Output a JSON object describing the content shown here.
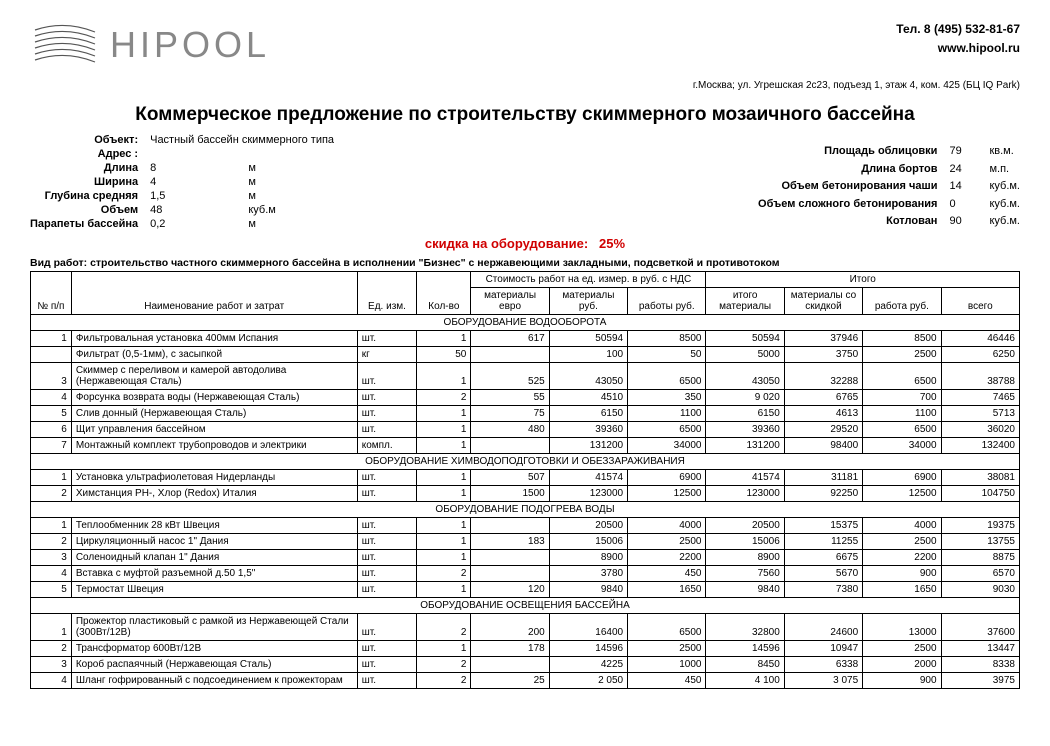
{
  "header": {
    "brand": "HIPOOL",
    "phone": "Тел. 8 (495) 532-81-67",
    "site": "www.hipool.ru",
    "address": "г.Москва; ул. Угрешская 2с23, подъезд 1, этаж 4, ком. 425 (БЦ IQ Park)"
  },
  "title": "Коммерческое предложение по строительству скиммерного мозаичного бассейна",
  "object_label": "Объект:",
  "object_value": "Частный бассейн скиммерного типа",
  "address_label": "Адрес :",
  "specs_left": [
    {
      "lbl": "Длина",
      "val": "8",
      "unit": "м"
    },
    {
      "lbl": "Ширина",
      "val": "4",
      "unit": "м"
    },
    {
      "lbl": "Глубина средняя",
      "val": "1,5",
      "unit": "м"
    },
    {
      "lbl": "Объем",
      "val": "48",
      "unit": "куб.м"
    },
    {
      "lbl": "Парапеты бассейна",
      "val": "0,2",
      "unit": "м"
    }
  ],
  "specs_right": [
    {
      "lbl": "Площадь облицовки",
      "val": "79",
      "unit": "кв.м."
    },
    {
      "lbl": "Длина бортов",
      "val": "24",
      "unit": "м.п."
    },
    {
      "lbl": "Объем бетонирования чаши",
      "val": "14",
      "unit": "куб.м."
    },
    {
      "lbl": "Объем сложного бетонирования",
      "val": "0",
      "unit": "куб.м."
    },
    {
      "lbl": "Котлован",
      "val": "90",
      "unit": "куб.м."
    }
  ],
  "discount_label": "скидка на оборудование:",
  "discount_value": "25%",
  "work_desc": "Вид  работ: строительство частного скиммерного бассейна в исполнении \"Бизнес\" с нержавеющими закладными, подсветкой и противотоком",
  "thead": {
    "cost_group": "Стоимость работ на ед. измер. в руб. с НДС",
    "total_group": "Итого",
    "np": "№ п/п",
    "name": "Наименование работ и затрат",
    "ed": "Ед. изм.",
    "qty": "Кол-во",
    "mat_eur": "материалы евро",
    "mat_rub": "материалы руб.",
    "work_rub": "работы руб.",
    "it_mat": "итого материалы",
    "it_disc": "материалы со скидкой",
    "it_work": "работа руб.",
    "it_all": "всего"
  },
  "sections": [
    {
      "title": "ОБОРУДОВАНИЕ ВОДООБОРОТА",
      "rows": [
        {
          "n": "1",
          "name": "Фильтровальная установка 400мм Испания",
          "ed": "шт.",
          "qty": "1",
          "me": "617",
          "mr": "50594",
          "wr": "8500",
          "im": "50594",
          "id": "37946",
          "iw": "8500",
          "ia": "46446"
        },
        {
          "n": "",
          "name": "Фильтрат (0,5-1мм), с засыпкой",
          "ed": "кг",
          "qty": "50",
          "me": "",
          "mr": "100",
          "wr": "50",
          "im": "5000",
          "id": "3750",
          "iw": "2500",
          "ia": "6250"
        },
        {
          "n": "3",
          "name": "Скиммер с переливом и камерой автодолива (Нержавеющая Сталь)",
          "ed": "шт.",
          "qty": "1",
          "me": "525",
          "mr": "43050",
          "wr": "6500",
          "im": "43050",
          "id": "32288",
          "iw": "6500",
          "ia": "38788"
        },
        {
          "n": "4",
          "name": "Форсунка возврата воды (Нержавеющая Сталь)",
          "ed": "шт.",
          "qty": "2",
          "me": "55",
          "mr": "4510",
          "wr": "350",
          "im": "9 020",
          "id": "6765",
          "iw": "700",
          "ia": "7465"
        },
        {
          "n": "5",
          "name": "Слив донный (Нержавеющая Сталь)",
          "ed": "шт.",
          "qty": "1",
          "me": "75",
          "mr": "6150",
          "wr": "1100",
          "im": "6150",
          "id": "4613",
          "iw": "1100",
          "ia": "5713"
        },
        {
          "n": "6",
          "name": "Щит управления бассейном",
          "ed": "шт.",
          "qty": "1",
          "me": "480",
          "mr": "39360",
          "wr": "6500",
          "im": "39360",
          "id": "29520",
          "iw": "6500",
          "ia": "36020"
        },
        {
          "n": "7",
          "name": "Монтажный комплект трубопроводов и электрики",
          "ed": "компл.",
          "qty": "1",
          "me": "",
          "mr": "131200",
          "wr": "34000",
          "im": "131200",
          "id": "98400",
          "iw": "34000",
          "ia": "132400"
        }
      ]
    },
    {
      "title": "ОБОРУДОВАНИЕ ХИМВОДОПОДГОТОВКИ И ОБЕЗЗАРАЖИВАНИЯ",
      "rows": [
        {
          "n": "1",
          "name": "Установка ультрафиолетовая Нидерланды",
          "ed": "шт.",
          "qty": "1",
          "me": "507",
          "mr": "41574",
          "wr": "6900",
          "im": "41574",
          "id": "31181",
          "iw": "6900",
          "ia": "38081"
        },
        {
          "n": "2",
          "name": "Химстанция PH-, Хлор (Redox) Италия",
          "ed": "шт.",
          "qty": "1",
          "me": "1500",
          "mr": "123000",
          "wr": "12500",
          "im": "123000",
          "id": "92250",
          "iw": "12500",
          "ia": "104750"
        }
      ]
    },
    {
      "title": "ОБОРУДОВАНИЕ ПОДОГРЕВА ВОДЫ",
      "rows": [
        {
          "n": "1",
          "name": "Теплообменник 28 кВт Швеция",
          "ed": "шт.",
          "qty": "1",
          "me": "",
          "mr": "20500",
          "wr": "4000",
          "im": "20500",
          "id": "15375",
          "iw": "4000",
          "ia": "19375"
        },
        {
          "n": "2",
          "name": "Циркуляционный насос 1\" Дания",
          "ed": "шт.",
          "qty": "1",
          "me": "183",
          "mr": "15006",
          "wr": "2500",
          "im": "15006",
          "id": "11255",
          "iw": "2500",
          "ia": "13755"
        },
        {
          "n": "3",
          "name": "Соленоидный клапан 1\" Дания",
          "ed": "шт.",
          "qty": "1",
          "me": "",
          "mr": "8900",
          "wr": "2200",
          "im": "8900",
          "id": "6675",
          "iw": "2200",
          "ia": "8875"
        },
        {
          "n": "4",
          "name": "Вставка с муфтой разъемной д.50 1,5\"",
          "ed": "шт.",
          "qty": "2",
          "me": "",
          "mr": "3780",
          "wr": "450",
          "im": "7560",
          "id": "5670",
          "iw": "900",
          "ia": "6570"
        },
        {
          "n": "5",
          "name": "Термостат Швеция",
          "ed": "шт.",
          "qty": "1",
          "me": "120",
          "mr": "9840",
          "wr": "1650",
          "im": "9840",
          "id": "7380",
          "iw": "1650",
          "ia": "9030"
        }
      ]
    },
    {
      "title": "ОБОРУДОВАНИЕ ОСВЕЩЕНИЯ БАССЕЙНА",
      "rows": [
        {
          "n": "1",
          "name": "Прожектор пластиковый с рамкой из Нержавеющей Стали (300Вт/12В)",
          "ed": "шт.",
          "qty": "2",
          "me": "200",
          "mr": "16400",
          "wr": "6500",
          "im": "32800",
          "id": "24600",
          "iw": "13000",
          "ia": "37600"
        },
        {
          "n": "2",
          "name": "Трансформатор 600Вт/12В",
          "ed": "шт.",
          "qty": "1",
          "me": "178",
          "mr": "14596",
          "wr": "2500",
          "im": "14596",
          "id": "10947",
          "iw": "2500",
          "ia": "13447"
        },
        {
          "n": "3",
          "name": "Короб распаячный (Нержавеющая Сталь)",
          "ed": "шт.",
          "qty": "2",
          "me": "",
          "mr": "4225",
          "wr": "1000",
          "im": "8450",
          "id": "6338",
          "iw": "2000",
          "ia": "8338"
        },
        {
          "n": "4",
          "name": "Шланг гофрированный с подсоединением к прожекторам",
          "ed": "шт.",
          "qty": "2",
          "me": "25",
          "mr": "2 050",
          "wr": "450",
          "im": "4 100",
          "id": "3 075",
          "iw": "900",
          "ia": "3975"
        }
      ]
    }
  ]
}
